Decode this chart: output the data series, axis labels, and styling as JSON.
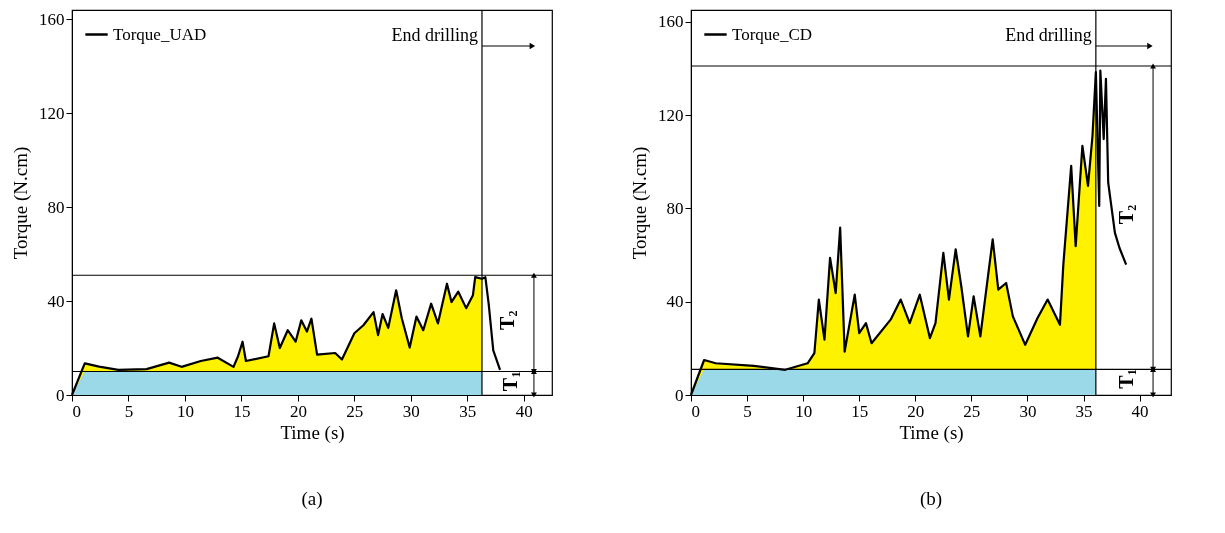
{
  "chart_data": [
    {
      "type": "line",
      "title": "(a)",
      "xlabel": "Time (s)",
      "ylabel": "Torque (N.cm)",
      "xlim": [
        0,
        42.5
      ],
      "ylim": [
        0,
        164
      ],
      "xticks": [
        0,
        5,
        10,
        15,
        20,
        25,
        30,
        35,
        40
      ],
      "yticks": [
        0,
        40,
        80,
        120,
        160
      ],
      "legend": "top left",
      "series": [
        {
          "type": "area",
          "color": "#fff200",
          "x": [
            0,
            1.13,
            2.4,
            4.1,
            6.6,
            8.6,
            9.7,
            11.4,
            12.9,
            14.3,
            14.7,
            15.1,
            15.4,
            17.4,
            17.9,
            18.4,
            19.1,
            19.8,
            20.3,
            20.8,
            21.2,
            21.7,
            23.3,
            23.9,
            25,
            25.8,
            26.7,
            27.1,
            27.5,
            28,
            28.7,
            29.2,
            29.9,
            30.5,
            31.1,
            31.8,
            32.4,
            33.2,
            33.6,
            34.2,
            34.9,
            35.5,
            35.7,
            36.3
          ],
          "values": [
            0,
            13.5,
            12.1,
            10.7,
            11,
            13.8,
            12,
            14.5,
            15.9,
            12,
            16.5,
            22.7,
            14.5,
            16.5,
            30.5,
            20,
            27.6,
            22.7,
            31.8,
            27,
            32.5,
            17.2,
            17.9,
            15.1,
            26.3,
            29.7,
            35.3,
            25.5,
            34.5,
            28.6,
            44.6,
            32.7,
            20.2,
            33.4,
            27.6,
            38.9,
            30.5,
            47.4,
            39.6,
            44,
            37,
            42.5,
            50.2,
            49.5
          ]
        },
        {
          "type": "area",
          "color": "#9bd9e8",
          "x": [
            0,
            1.13,
            36.3
          ],
          "values": [
            0,
            10,
            10
          ]
        },
        {
          "type": "line",
          "name": "Torque_UAD",
          "color": "#000000",
          "x": [
            0,
            1.13,
            2.4,
            4.1,
            6.6,
            8.6,
            9.7,
            11.4,
            12.9,
            14.3,
            14.7,
            15.1,
            15.4,
            17.4,
            17.9,
            18.4,
            19.1,
            19.8,
            20.3,
            20.8,
            21.2,
            21.7,
            23.3,
            23.9,
            25,
            25.8,
            26.7,
            27.1,
            27.5,
            28,
            28.7,
            29.2,
            29.9,
            30.5,
            31.1,
            31.8,
            32.4,
            33.2,
            33.6,
            34.2,
            34.9,
            35.5,
            35.7,
            36.3,
            36.6,
            36.9,
            37.3,
            37.9
          ],
          "values": [
            0,
            13.5,
            12.1,
            10.7,
            11,
            13.8,
            12,
            14.5,
            15.9,
            12,
            16.5,
            22.7,
            14.5,
            16.5,
            30.5,
            20,
            27.6,
            22.7,
            31.8,
            27,
            32.5,
            17.2,
            17.9,
            15.1,
            26.3,
            29.7,
            35.3,
            25.5,
            34.5,
            28.6,
            44.6,
            32.7,
            20.2,
            33.4,
            27.6,
            38.9,
            30.5,
            47.4,
            39.6,
            44,
            37,
            42.5,
            50.2,
            49.5,
            50.2,
            38.5,
            19,
            10.7
          ]
        }
      ],
      "ref_lines": [
        {
          "axis": "y",
          "value": 10
        },
        {
          "axis": "y",
          "value": 51
        },
        {
          "axis": "x",
          "value": 36.3,
          "label": "End drilling"
        }
      ],
      "annotations": [
        "T$_{2}$",
        {
          "text": "T$_{1}$",
          "x": 38.9,
          "y": 10
        }
      ]
    },
    {
      "type": "line",
      "title": "(b)",
      "xlabel": "Time (s)",
      "ylabel": "Torque (N.cm)",
      "xlim": [
        0,
        42.8
      ],
      "ylim": [
        0,
        165
      ],
      "xticks": [
        0,
        5,
        10,
        15,
        20,
        25,
        30,
        35,
        40
      ],
      "yticks": [
        0,
        40,
        80,
        120,
        160
      ],
      "legend": "top left",
      "series": [
        {
          "type": "area",
          "color": "#fff200",
          "x": [
            0,
            1.17,
            2.2,
            5.6,
            8.4,
            10.4,
            11,
            11.4,
            11.9,
            12.4,
            12.9,
            13.3,
            13.7,
            14.6,
            15,
            15.6,
            16.1,
            17.8,
            18.7,
            19.5,
            20.4,
            21.3,
            21.8,
            22.5,
            23,
            23.6,
            24.1,
            24.7,
            25.2,
            25.8,
            26.9,
            27.4,
            28.1,
            28.7,
            29.8,
            30.9,
            31.8,
            32.9,
            33.2,
            33.9,
            34.3,
            34.9,
            35.4,
            35.8,
            36.1
          ],
          "values": [
            0,
            15,
            13.6,
            12.5,
            10.8,
            13.6,
            17.9,
            40.9,
            23.7,
            58.8,
            43.7,
            71.7,
            18.6,
            43,
            26.5,
            30.8,
            22.2,
            32.3,
            40.9,
            30.8,
            43,
            24.4,
            30.8,
            60.9,
            40.9,
            62.4,
            46.6,
            25.1,
            42.3,
            25.1,
            66.7,
            45.2,
            48,
            33.7,
            21.5,
            33,
            40.9,
            30.1,
            55.9,
            98.2,
            63.8,
            106.8,
            89.6,
            111.1,
            138.4
          ]
        },
        {
          "type": "area",
          "color": "#9bd9e8",
          "x": [
            0,
            1.17,
            36.1
          ],
          "values": [
            0,
            11,
            11
          ]
        },
        {
          "type": "line",
          "name": "Torque_CD",
          "color": "#000000",
          "x": [
            0,
            1.17,
            2.2,
            5.6,
            8.4,
            10.4,
            11,
            11.4,
            11.9,
            12.4,
            12.9,
            13.3,
            13.7,
            14.6,
            15,
            15.6,
            16.1,
            17.8,
            18.7,
            19.5,
            20.4,
            21.3,
            21.8,
            22.5,
            23,
            23.6,
            24.1,
            24.7,
            25.2,
            25.8,
            26.9,
            27.4,
            28.1,
            28.7,
            29.8,
            30.9,
            31.8,
            32.9,
            33.2,
            33.9,
            34.3,
            34.9,
            35.4,
            35.8,
            36.1,
            36.4,
            36.5,
            36.8,
            37,
            37.2,
            37.8,
            38.2,
            38.8
          ],
          "values": [
            0,
            15,
            13.6,
            12.5,
            10.8,
            13.6,
            17.9,
            40.9,
            23.7,
            58.8,
            43.7,
            71.7,
            18.6,
            43,
            26.5,
            30.8,
            22.2,
            32.3,
            40.9,
            30.8,
            43,
            24.4,
            30.8,
            60.9,
            40.9,
            62.4,
            46.6,
            25.1,
            42.3,
            25.1,
            66.7,
            45.2,
            48,
            33.7,
            21.5,
            33,
            40.9,
            30.1,
            55.9,
            98.2,
            63.8,
            106.8,
            89.6,
            111.1,
            138.4,
            81,
            139,
            109.7,
            135.5,
            91,
            69.5,
            63.1,
            55.9
          ]
        }
      ],
      "ref_lines": [
        {
          "axis": "y",
          "value": 11
        },
        {
          "axis": "y",
          "value": 141
        },
        {
          "axis": "x",
          "value": 36.1,
          "label": "End drilling"
        }
      ],
      "annotations": [
        "T$_{2}$",
        "T$_{1}$"
      ]
    }
  ]
}
